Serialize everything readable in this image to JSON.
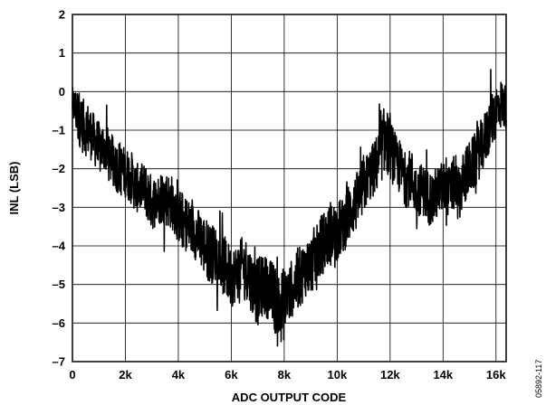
{
  "chart_data": {
    "type": "line",
    "xlabel": "ADC OUTPUT CODE",
    "ylabel": "INL (LSB)",
    "xlim": [
      0,
      16384
    ],
    "ylim": [
      -7,
      2
    ],
    "xticks": [
      0,
      2000,
      4000,
      6000,
      8000,
      10000,
      12000,
      14000,
      16000
    ],
    "xtick_labels": [
      "0",
      "2k",
      "4k",
      "6k",
      "8k",
      "10k",
      "12k",
      "14k",
      "16k"
    ],
    "yticks": [
      2,
      1,
      0,
      -1,
      -2,
      -3,
      -4,
      -5,
      -6,
      -7
    ],
    "ytick_labels": [
      "2",
      "1",
      "0",
      "–1",
      "–2",
      "–3",
      "–4",
      "–5",
      "–6",
      "–7"
    ],
    "grid": true,
    "figure_id": "05892-117",
    "series": [
      {
        "color": "#000000",
        "x": [
          0,
          200,
          400,
          600,
          800,
          1000,
          1200,
          1400,
          1600,
          1800,
          2000,
          2200,
          2400,
          2600,
          2800,
          3000,
          3200,
          3400,
          3600,
          3800,
          4000,
          4200,
          4400,
          4600,
          4800,
          5000,
          5200,
          5400,
          5600,
          5800,
          6000,
          6200,
          6400,
          6600,
          6800,
          7000,
          7200,
          7400,
          7600,
          7800,
          8000,
          8200,
          8400,
          8600,
          8800,
          9000,
          9200,
          9400,
          9600,
          9800,
          10000,
          10200,
          10400,
          10600,
          10800,
          11000,
          11200,
          11400,
          11600,
          11800,
          12000,
          12200,
          12400,
          12600,
          12800,
          13000,
          13200,
          13400,
          13600,
          13800,
          14000,
          14200,
          14400,
          14600,
          14800,
          15000,
          15200,
          15400,
          15600,
          15800,
          16000,
          16200,
          16383
        ],
        "y": [
          -0.3,
          -0.6,
          -0.9,
          -1.0,
          -1.2,
          -1.5,
          -1.4,
          -1.7,
          -1.9,
          -2.0,
          -2.1,
          -2.2,
          -2.5,
          -2.5,
          -2.6,
          -2.9,
          -2.8,
          -2.7,
          -2.8,
          -2.9,
          -3.2,
          -3.4,
          -3.5,
          -3.6,
          -3.8,
          -4.0,
          -4.2,
          -4.2,
          -4.4,
          -4.6,
          -4.8,
          -4.7,
          -4.5,
          -4.6,
          -5.0,
          -5.2,
          -5.0,
          -5.1,
          -5.3,
          -5.6,
          -5.5,
          -5.2,
          -5.0,
          -4.8,
          -4.6,
          -4.5,
          -4.2,
          -4.0,
          -3.8,
          -3.7,
          -3.6,
          -3.5,
          -3.2,
          -3.0,
          -2.8,
          -2.4,
          -2.2,
          -2.0,
          -1.7,
          -1.2,
          -1.5,
          -1.8,
          -2.0,
          -2.3,
          -2.2,
          -2.6,
          -2.5,
          -2.7,
          -2.8,
          -2.6,
          -2.5,
          -2.6,
          -2.4,
          -2.7,
          -2.2,
          -2.0,
          -1.8,
          -1.5,
          -1.2,
          -0.8,
          -0.5,
          -0.3,
          -0.4
        ],
        "band": [
          0.5,
          0.9,
          0.9,
          0.9,
          0.8,
          0.9,
          0.8,
          0.9,
          0.8,
          0.9,
          0.8,
          0.9,
          0.8,
          0.8,
          0.9,
          0.9,
          0.8,
          0.9,
          0.9,
          0.9,
          0.9,
          1.0,
          0.9,
          0.9,
          0.9,
          1.0,
          1.0,
          0.9,
          1.0,
          1.0,
          1.0,
          0.9,
          0.9,
          1.0,
          1.0,
          1.1,
          1.0,
          1.0,
          1.1,
          1.2,
          1.2,
          1.0,
          0.9,
          1.0,
          0.9,
          1.0,
          1.0,
          1.0,
          1.0,
          1.0,
          1.0,
          0.9,
          1.0,
          0.9,
          1.0,
          1.0,
          0.9,
          0.9,
          1.0,
          1.1,
          1.0,
          0.9,
          0.9,
          0.9,
          0.9,
          0.9,
          0.8,
          0.9,
          0.9,
          0.9,
          0.9,
          0.8,
          0.9,
          0.9,
          0.9,
          0.9,
          0.9,
          0.9,
          0.9,
          0.9,
          0.9,
          0.8,
          0.7
        ]
      }
    ]
  }
}
